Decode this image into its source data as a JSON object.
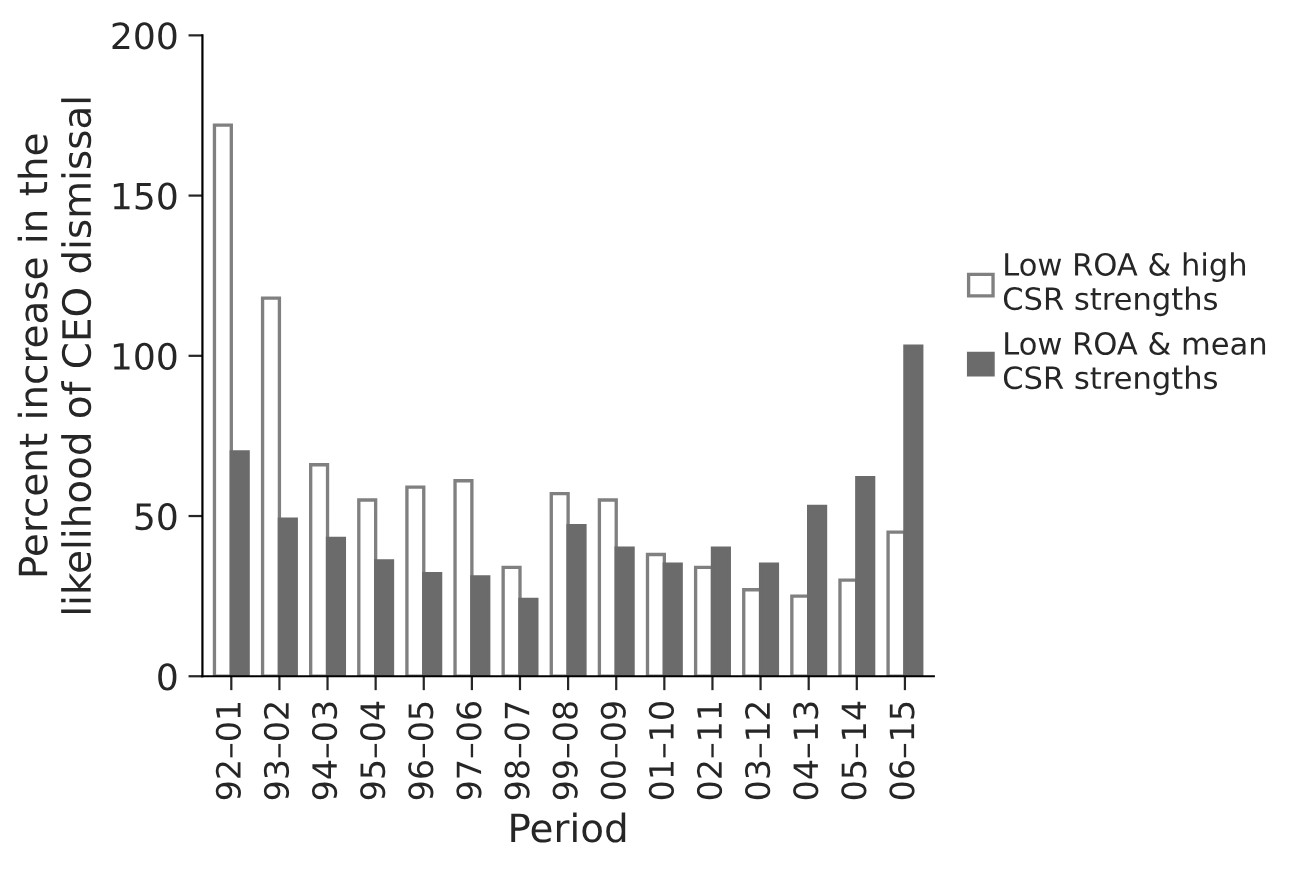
{
  "chart_data": {
    "type": "bar",
    "xlabel": "Period",
    "ylabel": "Percent increase in the\nlikelihood of CEO dismissal",
    "categories": [
      "92–01",
      "93–02",
      "94–03",
      "95–04",
      "96–05",
      "97–06",
      "98–07",
      "99–08",
      "00–09",
      "01–10",
      "02–11",
      "03–12",
      "04–13",
      "05–14",
      "06–15"
    ],
    "series": [
      {
        "name": "Low ROA & high\nCSR strengths",
        "color": "#ffffff",
        "values": [
          172,
          118,
          66,
          55,
          59,
          61,
          34,
          57,
          55,
          38,
          34,
          27,
          25,
          30,
          45
        ]
      },
      {
        "name": "Low ROA & mean\nCSR strengths",
        "color": "#6b6b6b",
        "values": [
          70,
          49,
          43,
          36,
          32,
          31,
          24,
          47,
          40,
          35,
          40,
          35,
          53,
          62,
          103
        ]
      }
    ],
    "ylim": [
      0,
      200
    ],
    "yticks": [
      0,
      50,
      100,
      150,
      200
    ],
    "grid": false,
    "legend": "right"
  }
}
